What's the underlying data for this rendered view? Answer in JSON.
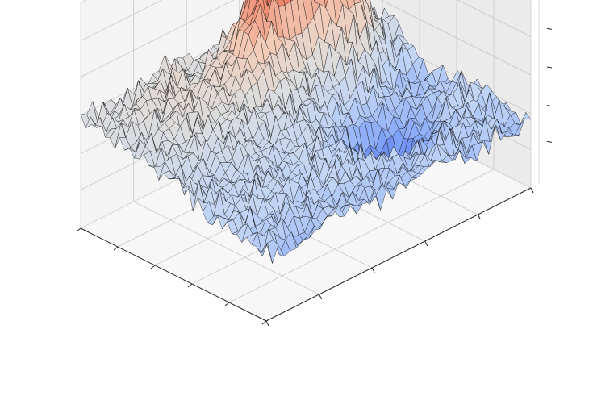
{
  "chart_data": {
    "type": "surface",
    "title": "",
    "xlabel": "",
    "ylabel": "",
    "zlabel": "",
    "colormap": "coolwarm",
    "colormap_stops": [
      "#3b4cc0",
      "#7b9ff9",
      "#c0d4f5",
      "#dddddd",
      "#f2cbb7",
      "#ee8468",
      "#b40426"
    ],
    "edge_color": "#111111",
    "grid": true,
    "tick_labels_shown": false,
    "pane_colors": {
      "left": "#f4f4f4",
      "right": "#ebebeb",
      "floor": "#f7f7f7"
    },
    "grid_size": [
      44,
      38
    ],
    "z_range": [
      0,
      1
    ],
    "features": [
      {
        "kind": "high ridge",
        "x": 0.62,
        "y": 0.82,
        "height": 0.95
      },
      {
        "kind": "ridge",
        "x": 0.78,
        "y": 0.72,
        "height": 0.75
      },
      {
        "kind": "ridge",
        "x": 0.48,
        "y": 0.72,
        "height": 0.62
      },
      {
        "kind": "deep basin",
        "x": 0.7,
        "y": 0.35,
        "height": 0.05
      },
      {
        "kind": "basin",
        "x": 0.92,
        "y": 0.55,
        "height": 0.22
      },
      {
        "kind": "plateau",
        "x": 0.25,
        "y": 0.75,
        "height": 0.45
      }
    ]
  }
}
